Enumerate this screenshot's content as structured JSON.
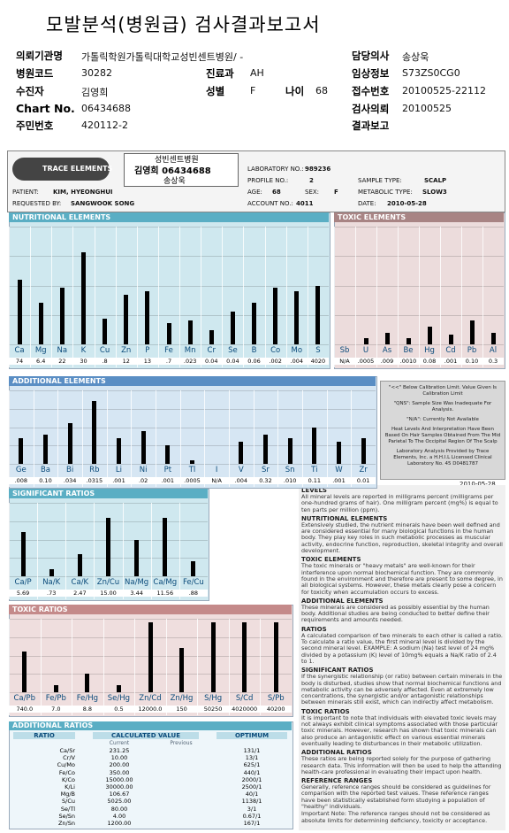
{
  "header": {
    "title": "모발분석(병원급) 검사결과보고서",
    "info": {
      "org_label": "의뢰기관명",
      "org": "가톨릭학원가톨릭대학교성빈센트병원/ -",
      "doctor_label": "담당의사",
      "doctor": "송상욱",
      "code_label": "병원코드",
      "code": "30282",
      "dept_label": "진료과",
      "dept": "AH",
      "clinic_label": "임상정보",
      "clinic": "S73ZS0CG0",
      "patient_label": "수진자",
      "patient": "김영희",
      "sex_label": "성별",
      "sex": "F",
      "age_label": "나이",
      "age": "68",
      "receipt_label": "접수번호",
      "receipt": "20100525-22112",
      "chart_label": "Chart No.",
      "chart": "06434688",
      "request_label": "검사의뢰",
      "request": "20100525",
      "id_label": "주민번호",
      "id": "420112-2",
      "report_label": "결과보고"
    }
  },
  "card": {
    "lab": "TRACE ELEMENTS",
    "hospital": "성빈센트병원",
    "patient_line": "김영희 06434688",
    "doctor": "송상욱",
    "lab_no_label": "LABORATORY NO.:",
    "lab_no": "989236",
    "profile_label": "PROFILE NO.:",
    "profile": "2",
    "sample_label": "SAMPLE TYPE:",
    "sample": "SCALP",
    "patient_label": "PATIENT:",
    "patient": "KIM, HYEONGHUI",
    "age_label": "AGE:",
    "age": "68",
    "sex_label": "SEX:",
    "sex": "F",
    "metabolic_label": "METABOLIC TYPE:",
    "metabolic": "SLOW3",
    "requested_label": "REQUESTED BY:",
    "requested": "SANGWOOK SONG",
    "account_label": "ACCOUNT NO.:",
    "account": "4011",
    "date_label": "DATE:",
    "date": "2010-05-28"
  },
  "nutritional": {
    "title": "NUTRITIONAL ELEMENTS",
    "labels": [
      "Ca",
      "Mg",
      "Na",
      "K",
      "Cu",
      "Zn",
      "P",
      "Fe",
      "Mn",
      "Cr",
      "Se",
      "B",
      "Co",
      "Mo",
      "S"
    ],
    "values": [
      "74",
      "6.4",
      "22",
      "30",
      ".8",
      "12",
      "13",
      ".7",
      ".023",
      "0.04",
      "0.04",
      "0.06",
      ".002",
      ".004",
      "4020"
    ]
  },
  "toxic": {
    "title": "TOXIC ELEMENTS",
    "labels": [
      "Sb",
      "U",
      "As",
      "Be",
      "Hg",
      "Cd",
      "Pb",
      "Al"
    ],
    "values": [
      "N/A",
      ".0005",
      ".009",
      ".0010",
      "0.08",
      ".001",
      "0.10",
      "0.3"
    ]
  },
  "additional": {
    "title": "ADDITIONAL ELEMENTS",
    "labels": [
      "Ge",
      "Ba",
      "Bi",
      "Rb",
      "Li",
      "Ni",
      "Pt",
      "Tl",
      "I",
      "V",
      "Sr",
      "Sn",
      "Ti",
      "W",
      "Zr"
    ],
    "values": [
      ".008",
      "0.10",
      ".034",
      ".0315",
      ".001",
      ".02",
      ".001",
      ".0005",
      "N/A",
      ".004",
      "0.32",
      ".010",
      "0.11",
      ".001",
      "0.01"
    ]
  },
  "significant": {
    "title": "SIGNIFICANT RATIOS",
    "labels": [
      "Ca/P",
      "Na/K",
      "Ca/K",
      "Zn/Cu",
      "Na/Mg",
      "Ca/Mg",
      "Fe/Cu"
    ],
    "values": [
      "5.69",
      ".73",
      "2.47",
      "15.00",
      "3.44",
      "11.56",
      ".88"
    ]
  },
  "toxic_ratios": {
    "title": "TOXIC RATIOS",
    "labels": [
      "Ca/Pb",
      "Fe/Pb",
      "Fe/Hg",
      "Se/Hg",
      "Zn/Cd",
      "Zn/Hg",
      "S/Hg",
      "S/Cd",
      "S/Pb"
    ],
    "values": [
      "740.0",
      "7.0",
      "8.8",
      "0.5",
      "12000.0",
      "150",
      "50250",
      "4020000",
      "40200"
    ]
  },
  "additional_ratios": {
    "title": "ADDITIONAL RATIOS",
    "columns": [
      "RATIO",
      "CALCULATED VALUE",
      "OPTIMUM"
    ],
    "subcolumns": [
      "Current",
      "Previous"
    ],
    "rows": [
      [
        "Ca/Sr",
        "231.25",
        "131/1"
      ],
      [
        "Cr/V",
        "10.00",
        "13/1"
      ],
      [
        "Cu/Mo",
        "200.00",
        "625/1"
      ],
      [
        "Fe/Co",
        "350.00",
        "440/1"
      ],
      [
        "K/Co",
        "15000.00",
        "2000/1"
      ],
      [
        "K/Li",
        "30000.00",
        "2500/1"
      ],
      [
        "Mg/B",
        "106.67",
        "40/1"
      ],
      [
        "S/Cu",
        "5025.00",
        "1138/1"
      ],
      [
        "Se/Tl",
        "80.00",
        "3/1"
      ],
      [
        "Se/Sn",
        "4.00",
        "0.67/1"
      ],
      [
        "Zn/Sn",
        "1200.00",
        "167/1"
      ]
    ]
  },
  "legend": [
    "\"<<\" Below Calibration Limit. Value Given Is Calibration Limit",
    "\"QNS\": Sample Size Was Inadequate For Analysis.",
    "\"N/A\": Currently Not Available",
    "Heat Levels And Interpretation Have Been Based On Hair Samples Obtained From The Mid Parietal To The Occipital Region Of The Scalp",
    "Laboratory Analysis Provided by Trace Elements, Inc. a H.H.I.L Licensed Clinical Laboratory No. 45 D0481787"
  ],
  "legend_date": "2010-05-28",
  "notes": [
    {
      "heading": "LEVELS",
      "text": "All mineral levels are reported in milligrams percent (milligrams per one-hundred grams of hair). One milligram percent (mg%) is equal to ten parts per million (ppm)."
    },
    {
      "heading": "NUTRITIONAL ELEMENTS",
      "text": "Extensively studied, the nutrient minerals have been well defined and are considered essential for many biological functions in the human body. They play key roles in such metabolic processes as muscular activity, endocrine function, reproduction, skeletal integrity and overall development."
    },
    {
      "heading": "TOXIC ELEMENTS",
      "text": "The toxic minerals or \"heavy metals\" are well-known for their interference upon normal biochemical function. They are commonly found in the environment and therefore are present to some degree, in all biological systems. However, these metals clearly pose a concern for toxicity when accumulation occurs to excess."
    },
    {
      "heading": "ADDITIONAL ELEMENTS",
      "text": "These minerals are considered as possibly essential by the human body. Additional studies are being conducted to better define their requirements and amounts needed."
    },
    {
      "heading": "RATIOS",
      "text": "A calculated comparison of two minerals to each other is called a ratio. To calculate a ratio value, the first mineral level is divided by the second mineral level. EXAMPLE: A sodium (Na) test level of 24 mg% divided by a potassium (K) level of 10mg% equals a Na/K ratio of 2.4 to 1."
    },
    {
      "heading": "SIGNIFICANT RATIOS",
      "text": "If the synergistic relationship (or ratio) between certain minerals in the body is disturbed, studies show that normal biochemical functions and metabolic activity can be adversely affected. Even at extremely low concentrations, the synergistic and/or antagonistic relationships between minerals still exist, which can indirectly affect metabolism."
    },
    {
      "heading": "TOXIC RATIOS",
      "text": "It is important to note that individuals with elevated toxic levels may not always exhibit clinical symptoms associated with those particular toxic minerals. However, research has shown that toxic minerals can also produce an antagonistic effect on various essential minerals eventually leading to disturbances in their metabolic utilization."
    },
    {
      "heading": "ADDITIONAL RATIOS",
      "text": "These ratios are being reported solely for the purpose of gathering research data. This information will then be used to help the attending health-care professional in evaluating their impact upon health."
    },
    {
      "heading": "REFERENCE RANGES",
      "text": "Generally, reference ranges should be considered as guidelines for comparison with the reported test values. These reference ranges have been statistically established form studying a population of \"healthy\" individuals."
    },
    {
      "heading": "",
      "text": "Important Note: The reference ranges should not be considered as absolute limits for determining deficiency, toxicity or acceptance."
    }
  ]
}
